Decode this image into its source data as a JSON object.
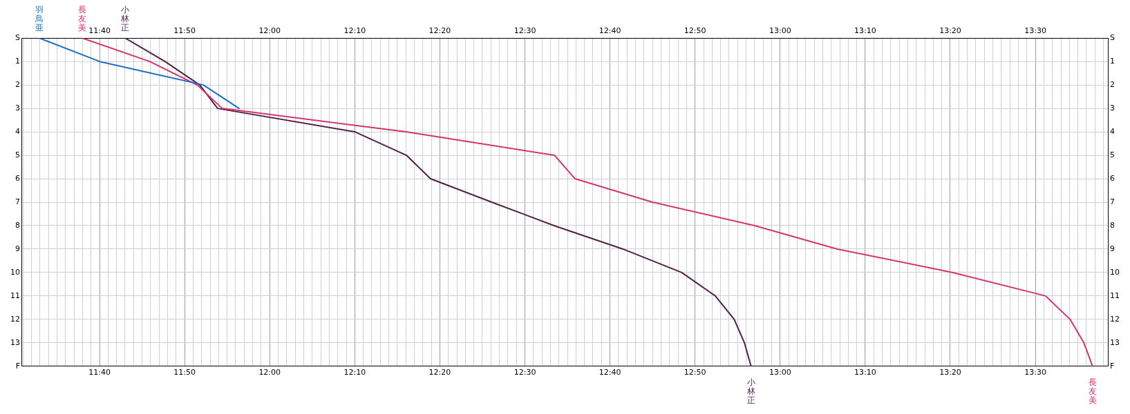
{
  "chart_data": {
    "type": "line",
    "xlim": [
      11.515,
      13.642
    ],
    "ylim": [
      14,
      0
    ],
    "x2lim": [
      11.515,
      13.642
    ],
    "y2lim": [
      14,
      0
    ],
    "xticks": [
      {
        "value": 11.5167,
        "label": null
      },
      {
        "value": 11.5333,
        "label": null
      },
      {
        "value": 11.55,
        "label": null
      },
      {
        "value": 11.5667,
        "label": null
      },
      {
        "value": 11.5833,
        "label": null
      },
      {
        "value": 11.6,
        "label": null
      },
      {
        "value": 11.6167,
        "label": null
      },
      {
        "value": 11.6333,
        "label": null
      },
      {
        "value": 11.65,
        "label": null
      },
      {
        "value": 11.6667,
        "label": "11:40"
      },
      {
        "value": 11.6833,
        "label": null
      },
      {
        "value": 11.7,
        "label": null
      },
      {
        "value": 11.7167,
        "label": null
      },
      {
        "value": 11.7333,
        "label": null
      },
      {
        "value": 11.75,
        "label": null
      },
      {
        "value": 11.7667,
        "label": null
      },
      {
        "value": 11.7833,
        "label": null
      },
      {
        "value": 11.8,
        "label": null
      },
      {
        "value": 11.8167,
        "label": null
      },
      {
        "value": 11.8333,
        "label": "11:50"
      },
      {
        "value": 11.85,
        "label": null
      },
      {
        "value": 11.8667,
        "label": null
      },
      {
        "value": 11.8833,
        "label": null
      },
      {
        "value": 11.9,
        "label": null
      },
      {
        "value": 11.9167,
        "label": null
      },
      {
        "value": 11.9333,
        "label": null
      },
      {
        "value": 11.95,
        "label": null
      },
      {
        "value": 11.9667,
        "label": null
      },
      {
        "value": 11.9833,
        "label": null
      },
      {
        "value": 12,
        "label": "12:00"
      },
      {
        "value": 12.0167,
        "label": null
      },
      {
        "value": 12.0333,
        "label": null
      },
      {
        "value": 12.05,
        "label": null
      },
      {
        "value": 12.0667,
        "label": null
      },
      {
        "value": 12.0833,
        "label": null
      },
      {
        "value": 12.1,
        "label": null
      },
      {
        "value": 12.1167,
        "label": null
      },
      {
        "value": 12.1333,
        "label": null
      },
      {
        "value": 12.15,
        "label": null
      },
      {
        "value": 12.1667,
        "label": "12:10"
      },
      {
        "value": 12.1833,
        "label": null
      },
      {
        "value": 12.2,
        "label": null
      },
      {
        "value": 12.2167,
        "label": null
      },
      {
        "value": 12.2333,
        "label": null
      },
      {
        "value": 12.25,
        "label": null
      },
      {
        "value": 12.2667,
        "label": null
      },
      {
        "value": 12.2833,
        "label": null
      },
      {
        "value": 12.3,
        "label": null
      },
      {
        "value": 12.3167,
        "label": null
      },
      {
        "value": 12.3333,
        "label": "12:20"
      },
      {
        "value": 12.35,
        "label": null
      },
      {
        "value": 12.3667,
        "label": null
      },
      {
        "value": 12.3833,
        "label": null
      },
      {
        "value": 12.4,
        "label": null
      },
      {
        "value": 12.4167,
        "label": null
      },
      {
        "value": 12.4333,
        "label": null
      },
      {
        "value": 12.45,
        "label": null
      },
      {
        "value": 12.4667,
        "label": null
      },
      {
        "value": 12.4833,
        "label": null
      },
      {
        "value": 12.5,
        "label": "12:30"
      },
      {
        "value": 12.5167,
        "label": null
      },
      {
        "value": 12.5333,
        "label": null
      },
      {
        "value": 12.55,
        "label": null
      },
      {
        "value": 12.5667,
        "label": null
      },
      {
        "value": 12.5833,
        "label": null
      },
      {
        "value": 12.6,
        "label": null
      },
      {
        "value": 12.6167,
        "label": null
      },
      {
        "value": 12.6333,
        "label": null
      },
      {
        "value": 12.65,
        "label": null
      },
      {
        "value": 12.6667,
        "label": "12:40"
      },
      {
        "value": 12.6833,
        "label": null
      },
      {
        "value": 12.7,
        "label": null
      },
      {
        "value": 12.7167,
        "label": null
      },
      {
        "value": 12.7333,
        "label": null
      },
      {
        "value": 12.75,
        "label": null
      },
      {
        "value": 12.7667,
        "label": null
      },
      {
        "value": 12.7833,
        "label": null
      },
      {
        "value": 12.8,
        "label": null
      },
      {
        "value": 12.8167,
        "label": null
      },
      {
        "value": 12.8333,
        "label": "12:50"
      },
      {
        "value": 12.85,
        "label": null
      },
      {
        "value": 12.8667,
        "label": null
      },
      {
        "value": 12.8833,
        "label": null
      },
      {
        "value": 12.9,
        "label": null
      },
      {
        "value": 12.9167,
        "label": null
      },
      {
        "value": 12.9333,
        "label": null
      },
      {
        "value": 12.95,
        "label": null
      },
      {
        "value": 12.9667,
        "label": null
      },
      {
        "value": 12.9833,
        "label": null
      },
      {
        "value": 13,
        "label": "13:00"
      },
      {
        "value": 13.0167,
        "label": null
      },
      {
        "value": 13.0333,
        "label": null
      },
      {
        "value": 13.05,
        "label": null
      },
      {
        "value": 13.0667,
        "label": null
      },
      {
        "value": 13.0833,
        "label": null
      },
      {
        "value": 13.1,
        "label": null
      },
      {
        "value": 13.1167,
        "label": null
      },
      {
        "value": 13.1333,
        "label": null
      },
      {
        "value": 13.15,
        "label": null
      },
      {
        "value": 13.1667,
        "label": "13:10"
      },
      {
        "value": 13.1833,
        "label": null
      },
      {
        "value": 13.2,
        "label": null
      },
      {
        "value": 13.2167,
        "label": null
      },
      {
        "value": 13.2333,
        "label": null
      },
      {
        "value": 13.25,
        "label": null
      },
      {
        "value": 13.2667,
        "label": null
      },
      {
        "value": 13.2833,
        "label": null
      },
      {
        "value": 13.3,
        "label": null
      },
      {
        "value": 13.3167,
        "label": null
      },
      {
        "value": 13.3333,
        "label": "13:20"
      },
      {
        "value": 13.35,
        "label": null
      },
      {
        "value": 13.3667,
        "label": null
      },
      {
        "value": 13.3833,
        "label": null
      },
      {
        "value": 13.4,
        "label": null
      },
      {
        "value": 13.4167,
        "label": null
      },
      {
        "value": 13.4333,
        "label": null
      },
      {
        "value": 13.45,
        "label": null
      },
      {
        "value": 13.4667,
        "label": null
      },
      {
        "value": 13.4833,
        "label": null
      },
      {
        "value": 13.5,
        "label": "13:30"
      },
      {
        "value": 13.5167,
        "label": null
      },
      {
        "value": 13.5333,
        "label": null
      },
      {
        "value": 13.55,
        "label": null
      },
      {
        "value": 13.5667,
        "label": null
      },
      {
        "value": 13.5833,
        "label": null
      },
      {
        "value": 13.6,
        "label": null
      },
      {
        "value": 13.6167,
        "label": null
      },
      {
        "value": 13.6333,
        "label": null
      }
    ],
    "x2ticks": [
      {
        "value": 11.6667,
        "label": "11:40"
      },
      {
        "value": 11.8333,
        "label": "11:50"
      },
      {
        "value": 12,
        "label": "12:00"
      },
      {
        "value": 12.1667,
        "label": "12:10"
      },
      {
        "value": 12.3333,
        "label": "12:20"
      },
      {
        "value": 12.5,
        "label": "12:30"
      },
      {
        "value": 12.6667,
        "label": "12:40"
      },
      {
        "value": 12.8333,
        "label": "12:50"
      },
      {
        "value": 13,
        "label": "13:00"
      },
      {
        "value": 13.1667,
        "label": "13:10"
      },
      {
        "value": 13.3333,
        "label": "13:20"
      },
      {
        "value": 13.5,
        "label": "13:30"
      }
    ],
    "yticks": [
      {
        "value": 0,
        "label": "S"
      },
      1,
      2,
      3,
      4,
      5,
      6,
      7,
      8,
      9,
      10,
      11,
      12,
      13,
      {
        "value": 14,
        "label": "F"
      }
    ],
    "y2ticks": [
      {
        "value": 0,
        "label": "S"
      },
      1,
      2,
      3,
      4,
      5,
      6,
      7,
      8,
      9,
      10,
      11,
      12,
      13,
      {
        "value": 14,
        "label": "F"
      }
    ],
    "grid": true,
    "legend": false,
    "marker": "none",
    "line_style": "solid",
    "series": [
      {
        "name": "羽鳥亜",
        "color": "#1a6fc4",
        "x": [
          11.549,
          11.667,
          11.87,
          11.94
        ],
        "values": [
          0,
          1,
          2,
          3
        ]
      },
      {
        "name": "長友美",
        "color": "#d6336c",
        "x": [
          11.633,
          11.765,
          11.858,
          11.907,
          12.267,
          12.558,
          12.598,
          12.75,
          12.95,
          13.112,
          13.338,
          13.52,
          13.568,
          13.595,
          13.612
        ],
        "values": [
          0,
          1,
          2,
          3,
          4,
          5,
          6,
          7,
          8,
          9,
          10,
          11,
          12,
          13,
          14
        ]
      },
      {
        "name": "小林正",
        "color": "#4f1f45",
        "x": [
          11.717,
          11.795,
          11.863,
          11.898,
          12.167,
          12.268,
          12.315,
          12.435,
          12.557,
          12.692,
          12.807,
          12.873,
          12.91,
          12.93,
          12.943
        ],
        "values": [
          0,
          1,
          2,
          3,
          4,
          5,
          6,
          7,
          8,
          9,
          10,
          11,
          12,
          13,
          14
        ]
      }
    ]
  }
}
